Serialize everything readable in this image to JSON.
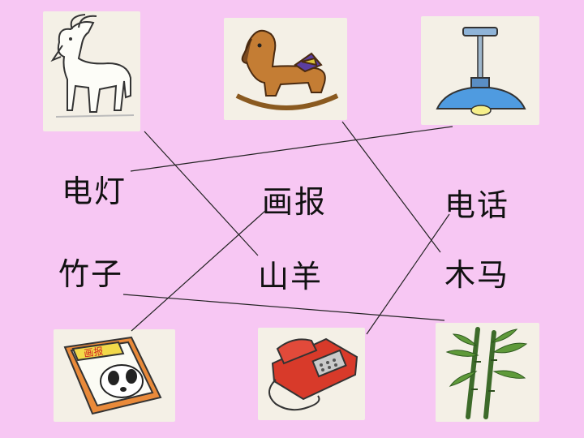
{
  "words": {
    "row1": [
      "电灯",
      "画报",
      "电话"
    ],
    "row2": [
      "竹子",
      "山羊",
      "木马"
    ]
  },
  "pictures": {
    "top": [
      "goat",
      "rocking-horse",
      "ceiling-lamp"
    ],
    "bottom": [
      "picture-magazine",
      "telephone",
      "bamboo"
    ]
  },
  "magazine_cover_text": "画报",
  "colors": {
    "background": "#f7c7f3",
    "card": "#f4f0e6",
    "line": "#222222",
    "text": "#111111"
  }
}
